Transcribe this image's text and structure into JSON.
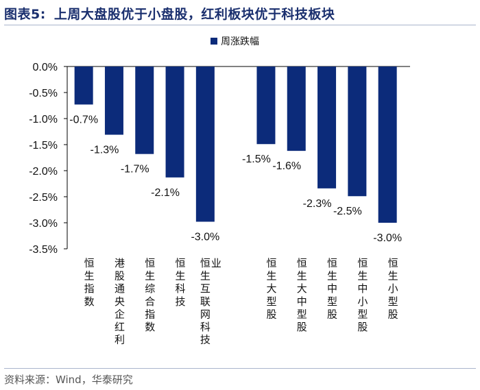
{
  "title": {
    "label": "图表5:",
    "text": "上周大盘股优于小盘股，红利板块优于科技板块"
  },
  "source": "资料来源：Wind，华泰研究",
  "colors": {
    "bar": "#0c2b7a",
    "title": "#1a2f6e"
  },
  "chart_data": {
    "type": "bar",
    "legend": [
      "周涨跌幅"
    ],
    "legend_position": "top",
    "ylim": [
      -3.5,
      0
    ],
    "yticks": [
      "0.0%",
      "-0.5%",
      "-1.0%",
      "-1.5%",
      "-2.0%",
      "-2.5%",
      "-3.0%",
      "-3.5%"
    ],
    "categories": [
      "恒生指数",
      "港股通央企红利",
      "恒生综合指数",
      "恒生科技",
      "恒生互联网科技业",
      "",
      "恒生大型股",
      "恒生大中型股",
      "恒生中型股",
      "恒生中小型股",
      "恒生小型股"
    ],
    "series": [
      {
        "name": "周涨跌幅",
        "values": [
          -0.73,
          -1.31,
          -1.68,
          -2.13,
          -2.98,
          null,
          -1.49,
          -1.62,
          -2.34,
          -2.49,
          -3.0
        ]
      }
    ],
    "data_labels": [
      "-0.7%",
      "-1.3%",
      "-1.7%",
      "-2.1%",
      "-3.0%",
      "",
      "-1.5%",
      "-1.6%",
      "-2.3%",
      "-2.5%",
      "-3.0%"
    ]
  }
}
